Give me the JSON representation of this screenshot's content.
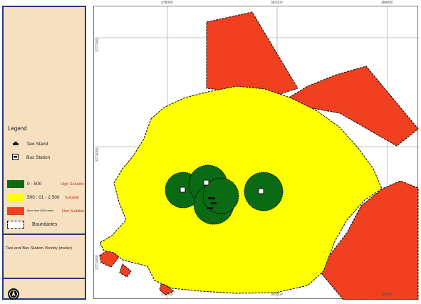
{
  "legend": {
    "title": "Legend",
    "taxi_stand": "Taxi Stand",
    "bus_station": "Bus Station",
    "classes": [
      {
        "range": "0 - 500",
        "label": "High Suitable",
        "color": "#0a6b14"
      },
      {
        "range": "500 . 01 - 2,500",
        "label": "Suitable",
        "color": "#ffff00"
      },
      {
        "range": "More than 2500 meter",
        "label": "Non Suitable",
        "color": "#f04020"
      }
    ],
    "boundaries": "Boundaries",
    "vicinity_title": "Taxi and Bus Station Vicinity (meter)"
  },
  "map": {
    "x_ticks": [
      "378000",
      "381000",
      "384000"
    ],
    "y_ticks": [
      "3777000",
      "3774000",
      "3771000"
    ],
    "suffix": "m E"
  },
  "colors": {
    "high": "#0a6b14",
    "suitable": "#ffff00",
    "non_suitable": "#f04020",
    "panel_bg": "#f6e0c0",
    "panel_border": "#243a7a"
  },
  "icons": {
    "taxi": "taxi-stand-icon",
    "bus": "bus-station-icon",
    "north": "north-arrow-icon"
  }
}
